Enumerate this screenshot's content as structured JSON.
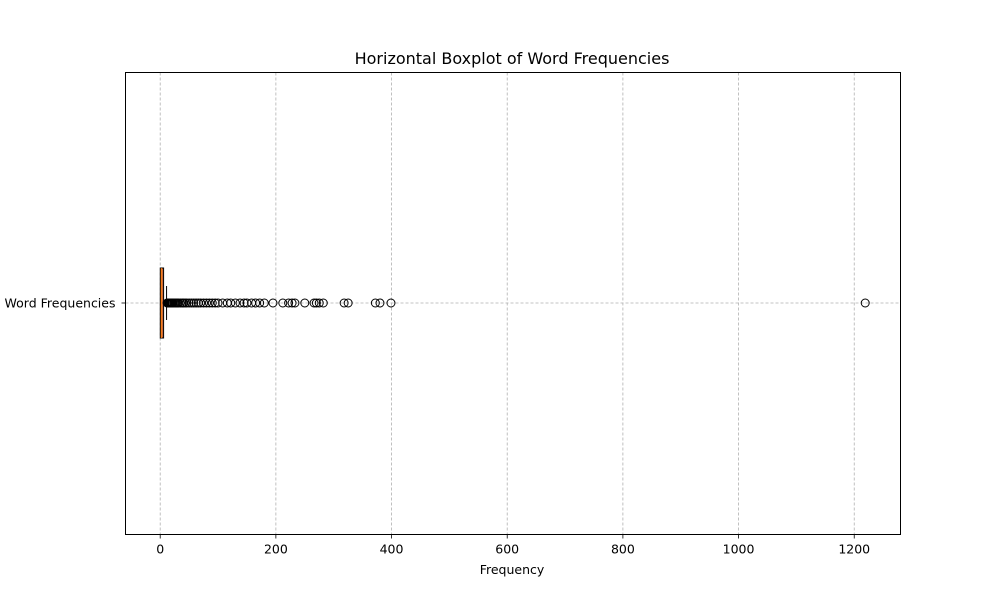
{
  "chart_data": {
    "type": "boxplot",
    "orientation": "horizontal",
    "title": "Horizontal Boxplot of Word Frequencies",
    "xlabel": "Frequency",
    "ylabel": "",
    "xlim": [
      -60,
      1280
    ],
    "xticks": [
      0,
      200,
      400,
      600,
      800,
      1000,
      1200
    ],
    "xtick_labels": [
      "0",
      "200",
      "400",
      "600",
      "800",
      "1000",
      "1200"
    ],
    "grid": true,
    "grid_style": "dashed",
    "series": [
      {
        "name": "Word Frequencies",
        "label": "Word Frequencies",
        "box_color": "#c8693c",
        "min": 1,
        "q1": 1,
        "median": 2,
        "q3": 5,
        "whisker_high": 11,
        "outliers": [
          12,
          13,
          14,
          15,
          16,
          17,
          18,
          19,
          20,
          21,
          22,
          24,
          26,
          28,
          30,
          32,
          35,
          38,
          40,
          43,
          46,
          50,
          54,
          58,
          62,
          66,
          70,
          75,
          80,
          85,
          90,
          95,
          100,
          108,
          116,
          122,
          130,
          138,
          145,
          150,
          158,
          165,
          172,
          180,
          195,
          212,
          222,
          228,
          233,
          250,
          266,
          270,
          275,
          282,
          318,
          325,
          372,
          380,
          399,
          1219
        ]
      }
    ]
  }
}
